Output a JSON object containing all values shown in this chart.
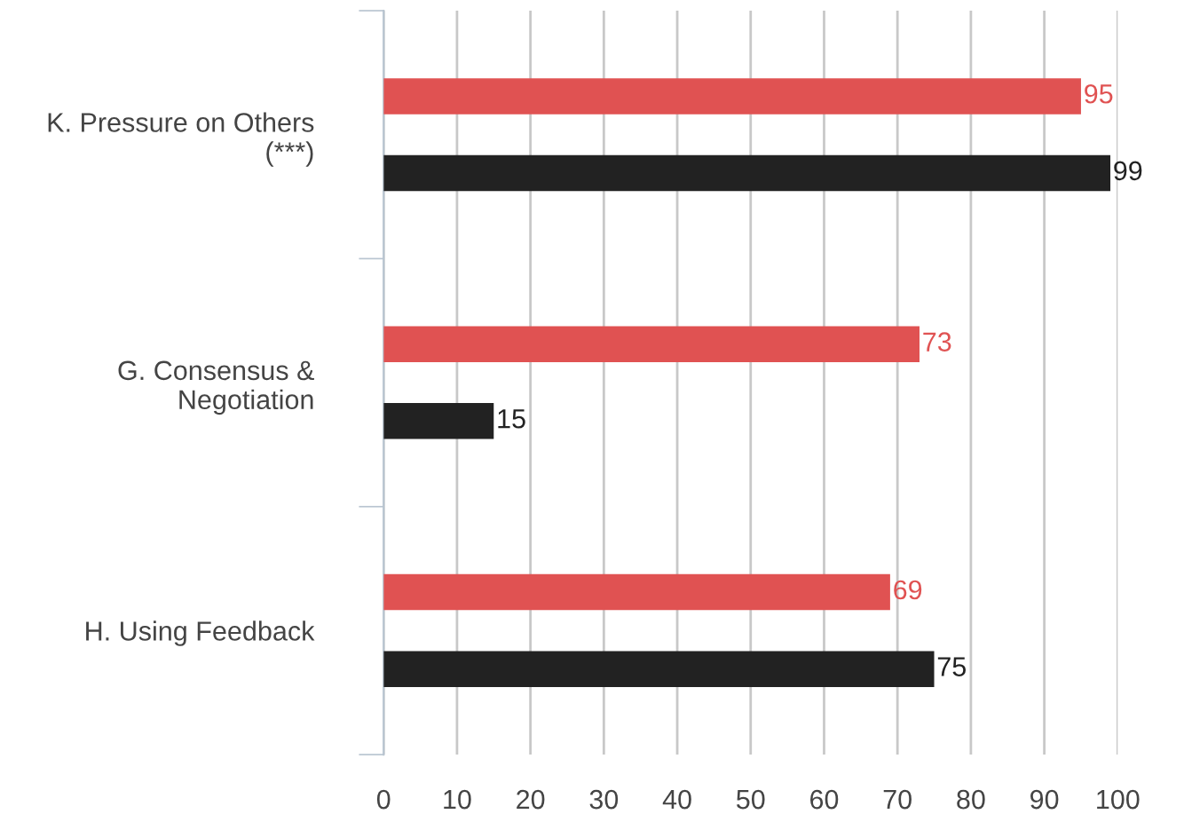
{
  "chart_data": {
    "type": "bar",
    "orientation": "horizontal",
    "categories": [
      "K. Pressure on Others\n(***)",
      "G. Consensus &\nNegotiation",
      "H. Using Feedback"
    ],
    "series": [
      {
        "color": "#e05252",
        "values": [
          95,
          73,
          69
        ]
      },
      {
        "color": "#222222",
        "values": [
          99,
          15,
          75
        ]
      }
    ],
    "xlim": [
      0,
      100
    ],
    "xticks": [
      0,
      10,
      20,
      30,
      40,
      50,
      60,
      70,
      80,
      90,
      100
    ],
    "grid": "x",
    "data_labels": true
  }
}
